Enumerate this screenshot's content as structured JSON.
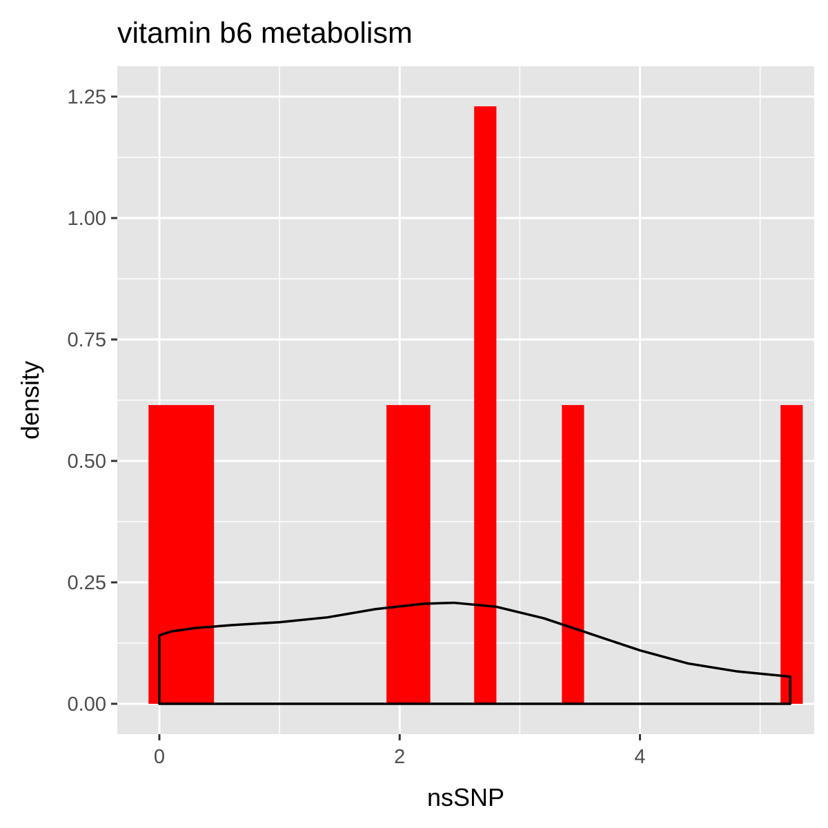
{
  "chart_data": {
    "type": "bar",
    "title": "vitamin b6 metabolism",
    "xlabel": "nsSNP",
    "ylabel": "density",
    "xlim": [
      -0.35,
      5.45
    ],
    "ylim": [
      -0.0625,
      1.3125
    ],
    "x_ticks": [
      0,
      2,
      4
    ],
    "x_tick_labels": [
      "0",
      "2",
      "4"
    ],
    "y_ticks": [
      0,
      0.25,
      0.5,
      0.75,
      1.0,
      1.25
    ],
    "y_tick_labels": [
      "0.00",
      "0.25",
      "0.50",
      "0.75",
      "1.00",
      "1.25"
    ],
    "grid": true,
    "bar_color": "#ff0000",
    "bars": [
      {
        "x0": -0.09,
        "x1": 0.455,
        "value": 0.615
      },
      {
        "x0": 1.89,
        "x1": 2.255,
        "value": 0.615
      },
      {
        "x0": 2.62,
        "x1": 2.805,
        "value": 1.23
      },
      {
        "x0": 3.35,
        "x1": 3.535,
        "value": 0.615
      },
      {
        "x0": 5.17,
        "x1": 5.355,
        "value": 0.615
      }
    ],
    "density_color": "#000000",
    "density_curve": {
      "x": [
        0,
        0.1,
        0.3,
        0.6,
        1.0,
        1.4,
        1.8,
        2.2,
        2.45,
        2.8,
        3.2,
        3.6,
        4.0,
        4.4,
        4.8,
        5.25
      ],
      "y": [
        0.141,
        0.149,
        0.156,
        0.162,
        0.168,
        0.178,
        0.195,
        0.206,
        0.208,
        0.2,
        0.176,
        0.143,
        0.11,
        0.083,
        0.067,
        0.056
      ]
    }
  }
}
